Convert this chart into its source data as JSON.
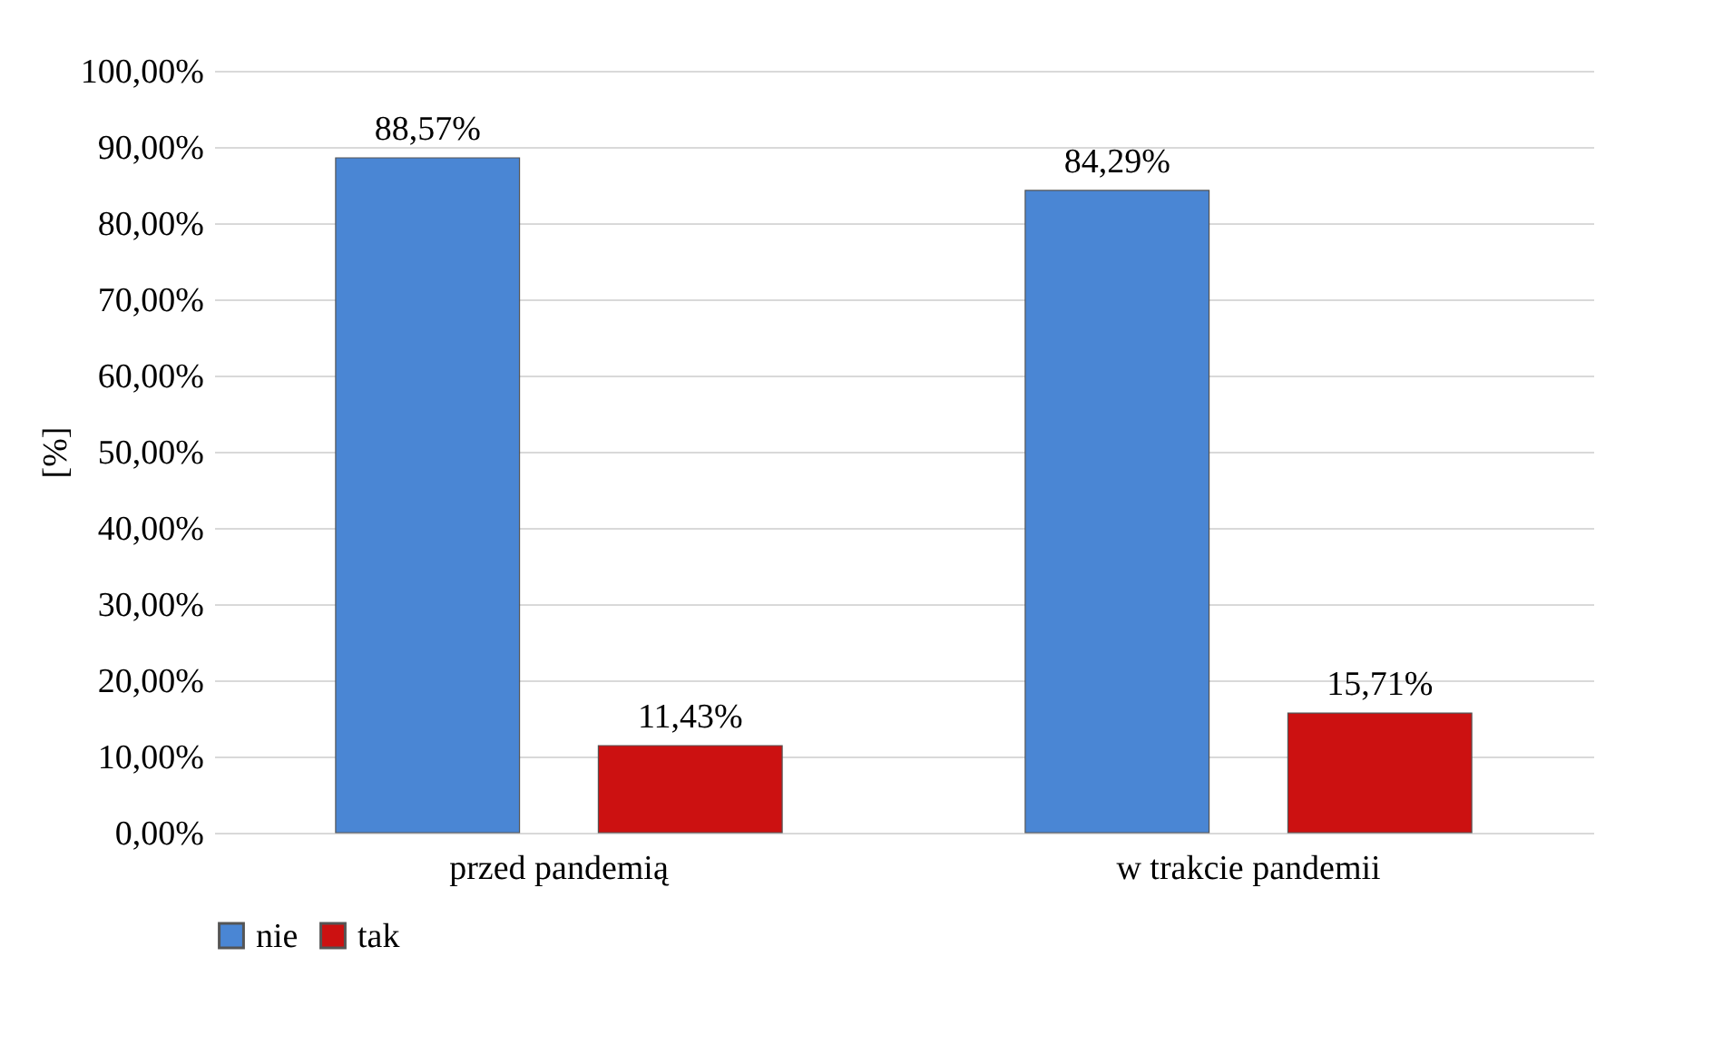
{
  "chart_data": {
    "type": "bar",
    "ylabel": "[%]",
    "categories": [
      "przed pandemią",
      "w trakcie pandemii"
    ],
    "series": [
      {
        "name": "nie",
        "color": "#4a86d4",
        "values": [
          88.57,
          84.29
        ],
        "value_labels": [
          "88,57%",
          "84,29%"
        ]
      },
      {
        "name": "tak",
        "color": "#cc1111",
        "values": [
          11.43,
          15.71
        ],
        "value_labels": [
          "11,43%",
          "15,71%"
        ]
      }
    ],
    "ylim": [
      0,
      100
    ],
    "yticks": [
      {
        "value": 0,
        "label": "0,00%"
      },
      {
        "value": 10,
        "label": "10,00%"
      },
      {
        "value": 20,
        "label": "20,00%"
      },
      {
        "value": 30,
        "label": "30,00%"
      },
      {
        "value": 40,
        "label": "40,00%"
      },
      {
        "value": 50,
        "label": "50,00%"
      },
      {
        "value": 60,
        "label": "60,00%"
      },
      {
        "value": 70,
        "label": "70,00%"
      },
      {
        "value": 80,
        "label": "80,00%"
      },
      {
        "value": 90,
        "label": "90,00%"
      },
      {
        "value": 100,
        "label": "100,00%"
      }
    ],
    "grid": "y",
    "legend": "bottom"
  }
}
